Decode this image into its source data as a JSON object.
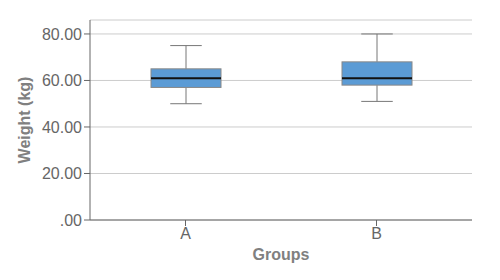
{
  "chart_data": {
    "type": "box",
    "xlabel": "Groups",
    "ylabel": "Weight (kg)",
    "categories": [
      "A",
      "B"
    ],
    "values": [
      {
        "whisker_low": 50,
        "q1": 57,
        "median": 61,
        "q3": 65,
        "whisker_high": 75
      },
      {
        "whisker_low": 51,
        "q1": 58,
        "median": 61,
        "q3": 68,
        "whisker_high": 80
      }
    ],
    "color": "#5b9bd5",
    "ylim": [
      0,
      86
    ],
    "yticks": [
      {
        "value": 0,
        "label": ".00"
      },
      {
        "value": 20,
        "label": "20.00"
      },
      {
        "value": 40,
        "label": "40.00"
      },
      {
        "value": 60,
        "label": "60.00"
      },
      {
        "value": 80,
        "label": "80.00"
      }
    ],
    "grid": true
  }
}
